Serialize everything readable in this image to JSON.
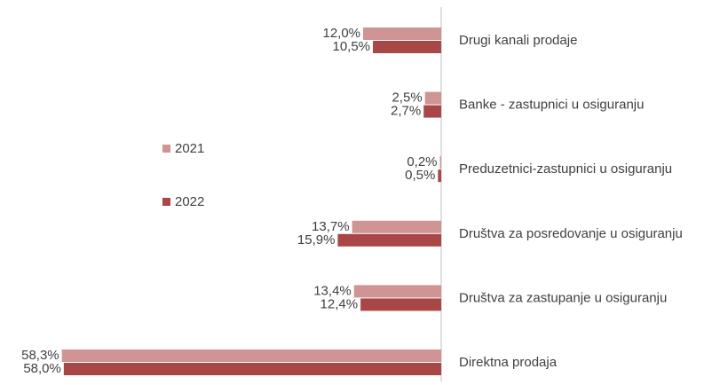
{
  "chart_data": {
    "type": "bar",
    "orientation": "horizontal",
    "categories": [
      "Drugi kanali prodaje",
      "Banke - zastupnici u osiguranju",
      "Preduzetnici-zastupnici u osiguranju",
      "Društva za posredovanje u osiguranju",
      "Društva za zastupanje u osiguranju",
      "Direktna prodaja"
    ],
    "series": [
      {
        "name": "2021",
        "color": "#d09494",
        "values": [
          12.0,
          2.5,
          0.2,
          13.7,
          13.4,
          58.3
        ],
        "value_labels": [
          "12,0%",
          "2,5%",
          "0,2%",
          "13,7%",
          "13,4%",
          "58,3%"
        ]
      },
      {
        "name": "2022",
        "color": "#a94646",
        "values": [
          10.5,
          2.7,
          0.5,
          15.9,
          12.4,
          58.0
        ],
        "value_labels": [
          "10,5%",
          "2,7%",
          "0,5%",
          "15,9%",
          "12,4%",
          "58,0%"
        ]
      }
    ],
    "legend": "left"
  }
}
